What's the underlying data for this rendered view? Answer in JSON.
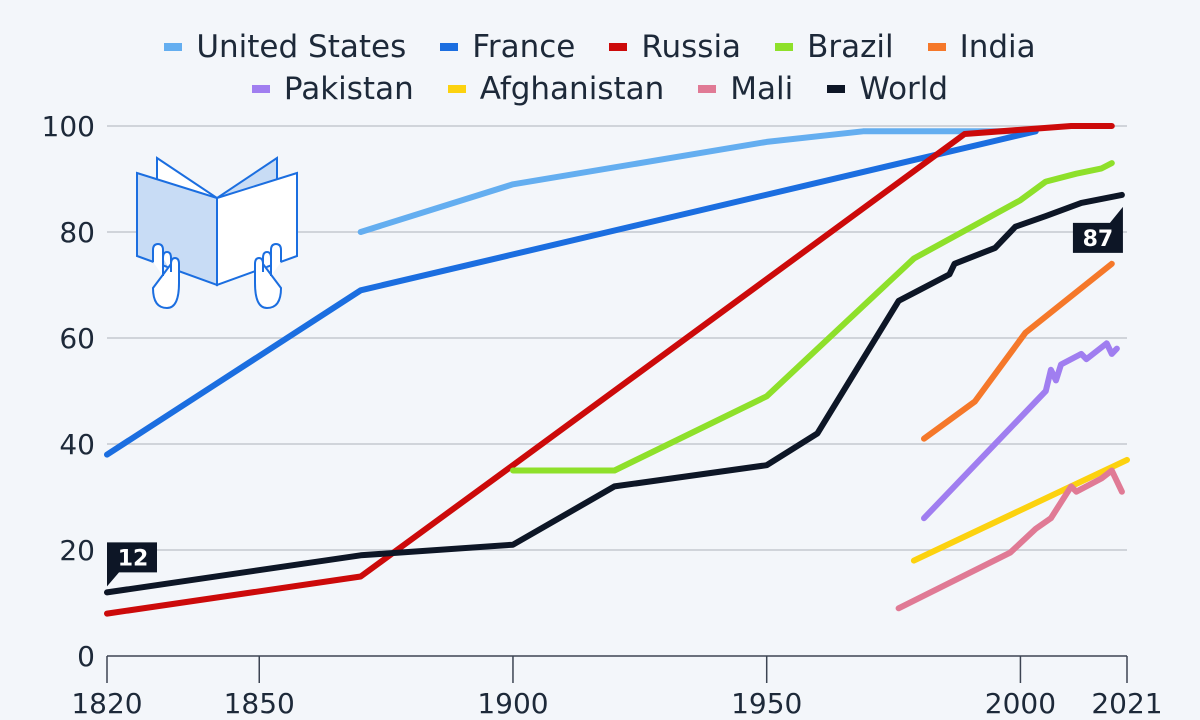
{
  "chart_data": {
    "type": "line",
    "title": "",
    "xlabel": "",
    "ylabel": "",
    "xlim": [
      1820,
      2021
    ],
    "ylim": [
      0,
      100
    ],
    "x_ticks": [
      1820,
      1850,
      1900,
      1950,
      2000,
      2021
    ],
    "y_ticks": [
      0,
      20,
      40,
      60,
      80,
      100
    ],
    "grid": true,
    "legend_position": "top-center",
    "series": [
      {
        "name": "United States",
        "color": "#64aef0",
        "points": [
          [
            1870,
            80
          ],
          [
            1900,
            89
          ],
          [
            1950,
            97
          ],
          [
            1969,
            99
          ],
          [
            2003,
            99
          ]
        ]
      },
      {
        "name": "France",
        "color": "#1b6ee0",
        "points": [
          [
            1820,
            38
          ],
          [
            1870,
            69
          ],
          [
            2003,
            99
          ]
        ]
      },
      {
        "name": "Russia",
        "color": "#cc0a0a",
        "points": [
          [
            1820,
            8
          ],
          [
            1870,
            15
          ],
          [
            1900,
            36
          ],
          [
            1989,
            98.5
          ],
          [
            2010,
            100
          ],
          [
            2018,
            100
          ]
        ]
      },
      {
        "name": "Brazil",
        "color": "#8ee02a",
        "points": [
          [
            1900,
            35
          ],
          [
            1920,
            35
          ],
          [
            1950,
            49
          ],
          [
            1979,
            75
          ],
          [
            2000,
            86
          ],
          [
            2005,
            89.5
          ],
          [
            2011,
            91
          ],
          [
            2016,
            92
          ],
          [
            2018,
            93
          ]
        ]
      },
      {
        "name": "India",
        "color": "#f5782a",
        "points": [
          [
            1981,
            41
          ],
          [
            1991,
            48
          ],
          [
            2001,
            61
          ],
          [
            2018,
            74
          ]
        ]
      },
      {
        "name": "Pakistan",
        "color": "#a07ef0",
        "points": [
          [
            1981,
            26
          ],
          [
            2005,
            50
          ],
          [
            2006,
            54
          ],
          [
            2007,
            52
          ],
          [
            2008,
            55
          ],
          [
            2012,
            57
          ],
          [
            2013,
            56
          ],
          [
            2017,
            59
          ],
          [
            2018,
            57
          ],
          [
            2019,
            58
          ]
        ]
      },
      {
        "name": "Afghanistan",
        "color": "#fcd20f",
        "points": [
          [
            1979,
            18
          ],
          [
            2021,
            37
          ]
        ]
      },
      {
        "name": "Mali",
        "color": "#e07a95",
        "points": [
          [
            1976,
            9
          ],
          [
            1998,
            19.5
          ],
          [
            2003,
            24
          ],
          [
            2006,
            26
          ],
          [
            2010,
            32
          ],
          [
            2011,
            31
          ],
          [
            2016,
            33.5
          ],
          [
            2018,
            35
          ],
          [
            2020,
            31
          ]
        ]
      },
      {
        "name": "World",
        "color": "#0d1626",
        "points": [
          [
            1820,
            12
          ],
          [
            1870,
            19
          ],
          [
            1900,
            21
          ],
          [
            1920,
            32
          ],
          [
            1950,
            36
          ],
          [
            1960,
            42
          ],
          [
            1976,
            67
          ],
          [
            1980,
            69
          ],
          [
            1986,
            72
          ],
          [
            1987,
            74
          ],
          [
            1995,
            77
          ],
          [
            1999,
            81
          ],
          [
            2005,
            83
          ],
          [
            2012,
            85.5
          ],
          [
            2020,
            87
          ]
        ]
      }
    ],
    "annotations": [
      {
        "series": "World",
        "label": "12",
        "x": 1820,
        "y": 12
      },
      {
        "series": "World",
        "label": "87",
        "x": 2020,
        "y": 87
      }
    ]
  },
  "legend": {
    "rows": [
      [
        "United States",
        "France",
        "Russia",
        "Brazil",
        "India"
      ],
      [
        "Pakistan",
        "Afghanistan",
        "Mali",
        "World"
      ]
    ]
  },
  "icon": "open-book-hands-icon"
}
